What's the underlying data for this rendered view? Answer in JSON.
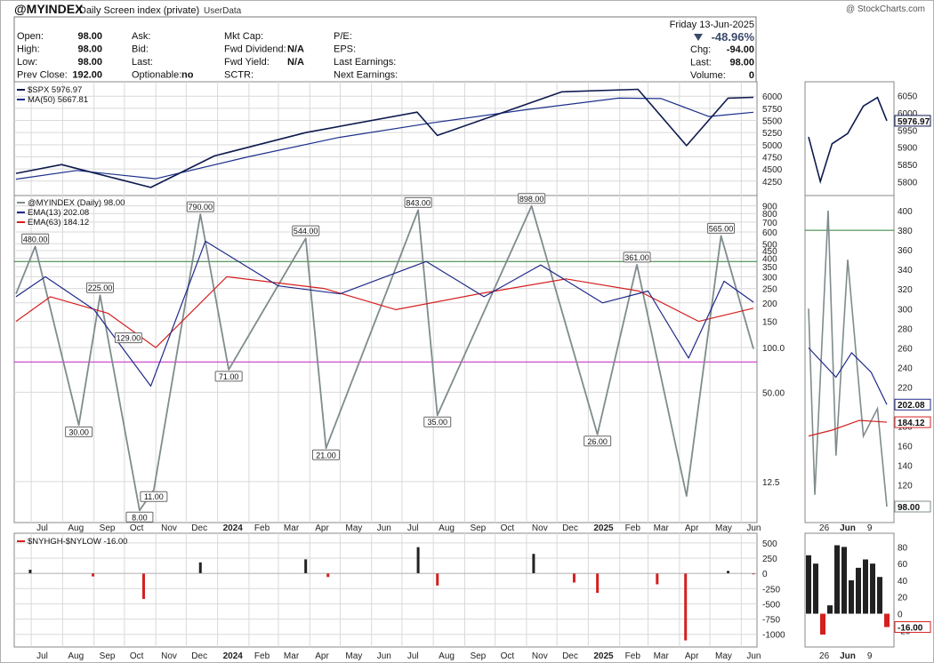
{
  "header": {
    "symbol": "@MYINDEX",
    "subtitle": "Daily Screen index (private)",
    "userdata": "UserData",
    "copyright": "@ StockCharts.com",
    "date": "Friday  13-Jun-2025",
    "change_pct": "-48.96%"
  },
  "quote": {
    "col1": [
      {
        "label": "Open:",
        "value": "98.00"
      },
      {
        "label": "High:",
        "value": "98.00"
      },
      {
        "label": "Low:",
        "value": "98.00"
      },
      {
        "label": "Prev Close:",
        "value": "192.00"
      }
    ],
    "col2": [
      {
        "label": "Ask:",
        "value": ""
      },
      {
        "label": "Bid:",
        "value": ""
      },
      {
        "label": "Last:",
        "value": ""
      },
      {
        "label": "Optionable:",
        "value": "no"
      }
    ],
    "col3": [
      {
        "label": "Mkt Cap:",
        "value": ""
      },
      {
        "label": "Fwd Dividend:",
        "value": "N/A"
      },
      {
        "label": "Fwd Yield:",
        "value": "N/A"
      },
      {
        "label": "SCTR:",
        "value": ""
      }
    ],
    "col4": [
      {
        "label": "P/E:",
        "value": ""
      },
      {
        "label": "EPS:",
        "value": ""
      },
      {
        "label": "Last Earnings:",
        "value": ""
      },
      {
        "label": "Next Earnings:",
        "value": ""
      }
    ],
    "col5": [
      {
        "label": "Chg:",
        "value": "-94.00"
      },
      {
        "label": "Last:",
        "value": "98.00"
      },
      {
        "label": "Volume:",
        "value": "0"
      }
    ]
  },
  "colors": {
    "spx": "#0d1a4d",
    "ma50": "#1c2f8c",
    "index": "#7f8c8d",
    "ema13": "#1f2a8a",
    "ema63": "#d42020",
    "green_line": "#2e7d32",
    "magenta_line": "#c020c0",
    "pos_bar": "#222222",
    "neg_bar": "#d42020",
    "grid": "#d9d9d9"
  },
  "chart_data": [
    {
      "type": "line",
      "panel": "spx",
      "legend": [
        "$SPX 5976.97",
        "MA(50) 5667.81"
      ],
      "last_value": "5976.97",
      "y_ticks": [
        "6000",
        "5750",
        "5500",
        "5250",
        "5000",
        "4750",
        "4500",
        "4250"
      ],
      "zoom_y_ticks": [
        "6050",
        "6000",
        "5950",
        "5900",
        "5850",
        "5800"
      ],
      "series": [
        {
          "name": "$SPX",
          "x": [
            "2023-06-16",
            "2023-07-31",
            "2023-10-27",
            "2023-12-29",
            "2024-03-28",
            "2024-07-16",
            "2024-08-05",
            "2024-12-06",
            "2025-02-19",
            "2025-04-08",
            "2025-05-19",
            "2025-06-13"
          ],
          "values": [
            4410,
            4590,
            4120,
            4770,
            5250,
            5670,
            5190,
            6090,
            6140,
            4980,
            5960,
            5977
          ]
        },
        {
          "name": "MA(50)",
          "x": [
            "2023-06-16",
            "2023-08-15",
            "2023-11-01",
            "2024-01-31",
            "2024-04-30",
            "2024-07-31",
            "2024-10-31",
            "2025-01-31",
            "2025-03-14",
            "2025-04-30",
            "2025-06-13"
          ],
          "values": [
            4290,
            4470,
            4300,
            4750,
            5150,
            5450,
            5720,
            5960,
            5950,
            5580,
            5668
          ]
        }
      ]
    },
    {
      "type": "line",
      "panel": "myindex",
      "scale": "log",
      "legend": [
        "@MYINDEX (Daily) 98.00",
        "EMA(13) 202.08",
        "EMA(63) 184.12"
      ],
      "last_values": [
        "202.08",
        "184.12",
        "98.00"
      ],
      "y_ticks": [
        "900",
        "800",
        "700",
        "600",
        "500",
        "450",
        "400",
        "350",
        "300",
        "250",
        "200",
        "150",
        "100.0",
        "50.00",
        "12.5"
      ],
      "zoom_y_ticks": [
        "400",
        "380",
        "360",
        "340",
        "320",
        "300",
        "280",
        "260",
        "240",
        "220",
        "200",
        "180",
        "160",
        "140",
        "120",
        "100"
      ],
      "reference_lines": [
        380,
        80
      ],
      "annotations": [
        {
          "label": "480.00",
          "x": "2023-07-05",
          "y": 480
        },
        {
          "label": "225.00",
          "x": "2023-09-07",
          "y": 225
        },
        {
          "label": "129.00",
          "x": "2023-10-05",
          "y": 129
        },
        {
          "label": "30.00",
          "x": "2023-08-17",
          "y": 30
        },
        {
          "label": "8.00",
          "x": "2023-10-16",
          "y": 8
        },
        {
          "label": "11.00",
          "x": "2023-10-30",
          "y": 11
        },
        {
          "label": "790.00",
          "x": "2023-12-15",
          "y": 790
        },
        {
          "label": "71.00",
          "x": "2024-01-12",
          "y": 71
        },
        {
          "label": "544.00",
          "x": "2024-03-28",
          "y": 544
        },
        {
          "label": "21.00",
          "x": "2024-04-17",
          "y": 21
        },
        {
          "label": "843.00",
          "x": "2024-07-17",
          "y": 843
        },
        {
          "label": "35.00",
          "x": "2024-08-05",
          "y": 35
        },
        {
          "label": "898.00",
          "x": "2024-11-06",
          "y": 898
        },
        {
          "label": "26.00",
          "x": "2025-01-10",
          "y": 26
        },
        {
          "label": "361.00",
          "x": "2025-02-18",
          "y": 361
        },
        {
          "label": "565.00",
          "x": "2025-05-12",
          "y": 565
        }
      ],
      "series": [
        {
          "name": "@MYINDEX",
          "x": [
            "2023-06-16",
            "2023-07-05",
            "2023-08-17",
            "2023-09-07",
            "2023-10-16",
            "2023-10-30",
            "2023-12-15",
            "2024-01-12",
            "2024-03-28",
            "2024-04-17",
            "2024-07-17",
            "2024-08-05",
            "2024-11-06",
            "2025-01-10",
            "2025-02-18",
            "2025-04-08",
            "2025-05-12",
            "2025-06-13"
          ],
          "values": [
            230,
            480,
            30,
            225,
            8,
            11,
            790,
            71,
            544,
            21,
            843,
            35,
            898,
            26,
            361,
            10,
            565,
            98
          ]
        },
        {
          "name": "EMA(13)",
          "x": [
            "2023-06-16",
            "2023-07-15",
            "2023-09-01",
            "2023-10-27",
            "2023-12-20",
            "2024-03-01",
            "2024-05-01",
            "2024-07-25",
            "2024-09-20",
            "2024-11-15",
            "2025-01-15",
            "2025-03-01",
            "2025-04-10",
            "2025-05-15",
            "2025-06-13"
          ],
          "values": [
            220,
            300,
            180,
            55,
            520,
            260,
            230,
            380,
            220,
            360,
            200,
            240,
            85,
            280,
            202.08
          ]
        },
        {
          "name": "EMA(63)",
          "x": [
            "2023-06-16",
            "2023-07-20",
            "2023-09-15",
            "2023-11-01",
            "2024-01-10",
            "2024-04-15",
            "2024-06-25",
            "2024-09-15",
            "2024-12-10",
            "2025-02-20",
            "2025-04-20",
            "2025-06-13"
          ],
          "values": [
            150,
            220,
            170,
            100,
            300,
            250,
            180,
            230,
            290,
            240,
            150,
            184.12
          ]
        }
      ]
    },
    {
      "type": "bar",
      "panel": "nyhgh_nylow",
      "legend": [
        "$NYHGH-$NYLOW -16.00"
      ],
      "last_value": "-16.00",
      "y_ticks": [
        "500",
        "250",
        "0",
        "-250",
        "-500",
        "-750",
        "-1000"
      ],
      "zoom_y_ticks": [
        "80",
        "60",
        "40",
        "20",
        "0",
        "-20"
      ],
      "x": [
        "2023-06-30",
        "2023-08-31",
        "2023-10-20",
        "2023-12-15",
        "2024-03-28",
        "2024-04-19",
        "2024-07-17",
        "2024-08-05",
        "2024-11-08",
        "2024-12-18",
        "2025-01-10",
        "2025-03-10",
        "2025-04-07",
        "2025-05-19",
        "2025-06-13"
      ],
      "values": [
        60,
        -50,
        -420,
        180,
        230,
        -60,
        430,
        -200,
        320,
        -150,
        -320,
        -180,
        -1100,
        40,
        -16
      ]
    }
  ],
  "x_axis": [
    "Jul",
    "Aug",
    "Sep",
    "Oct",
    "Nov",
    "Dec",
    "2024",
    "Feb",
    "Mar",
    "Apr",
    "May",
    "Jun",
    "Jul",
    "Aug",
    "Sep",
    "Oct",
    "Nov",
    "Dec",
    "2025",
    "Feb",
    "Mar",
    "Apr",
    "May",
    "Jun"
  ],
  "zoom_x_axis": [
    "26",
    "Jun",
    "9"
  ]
}
